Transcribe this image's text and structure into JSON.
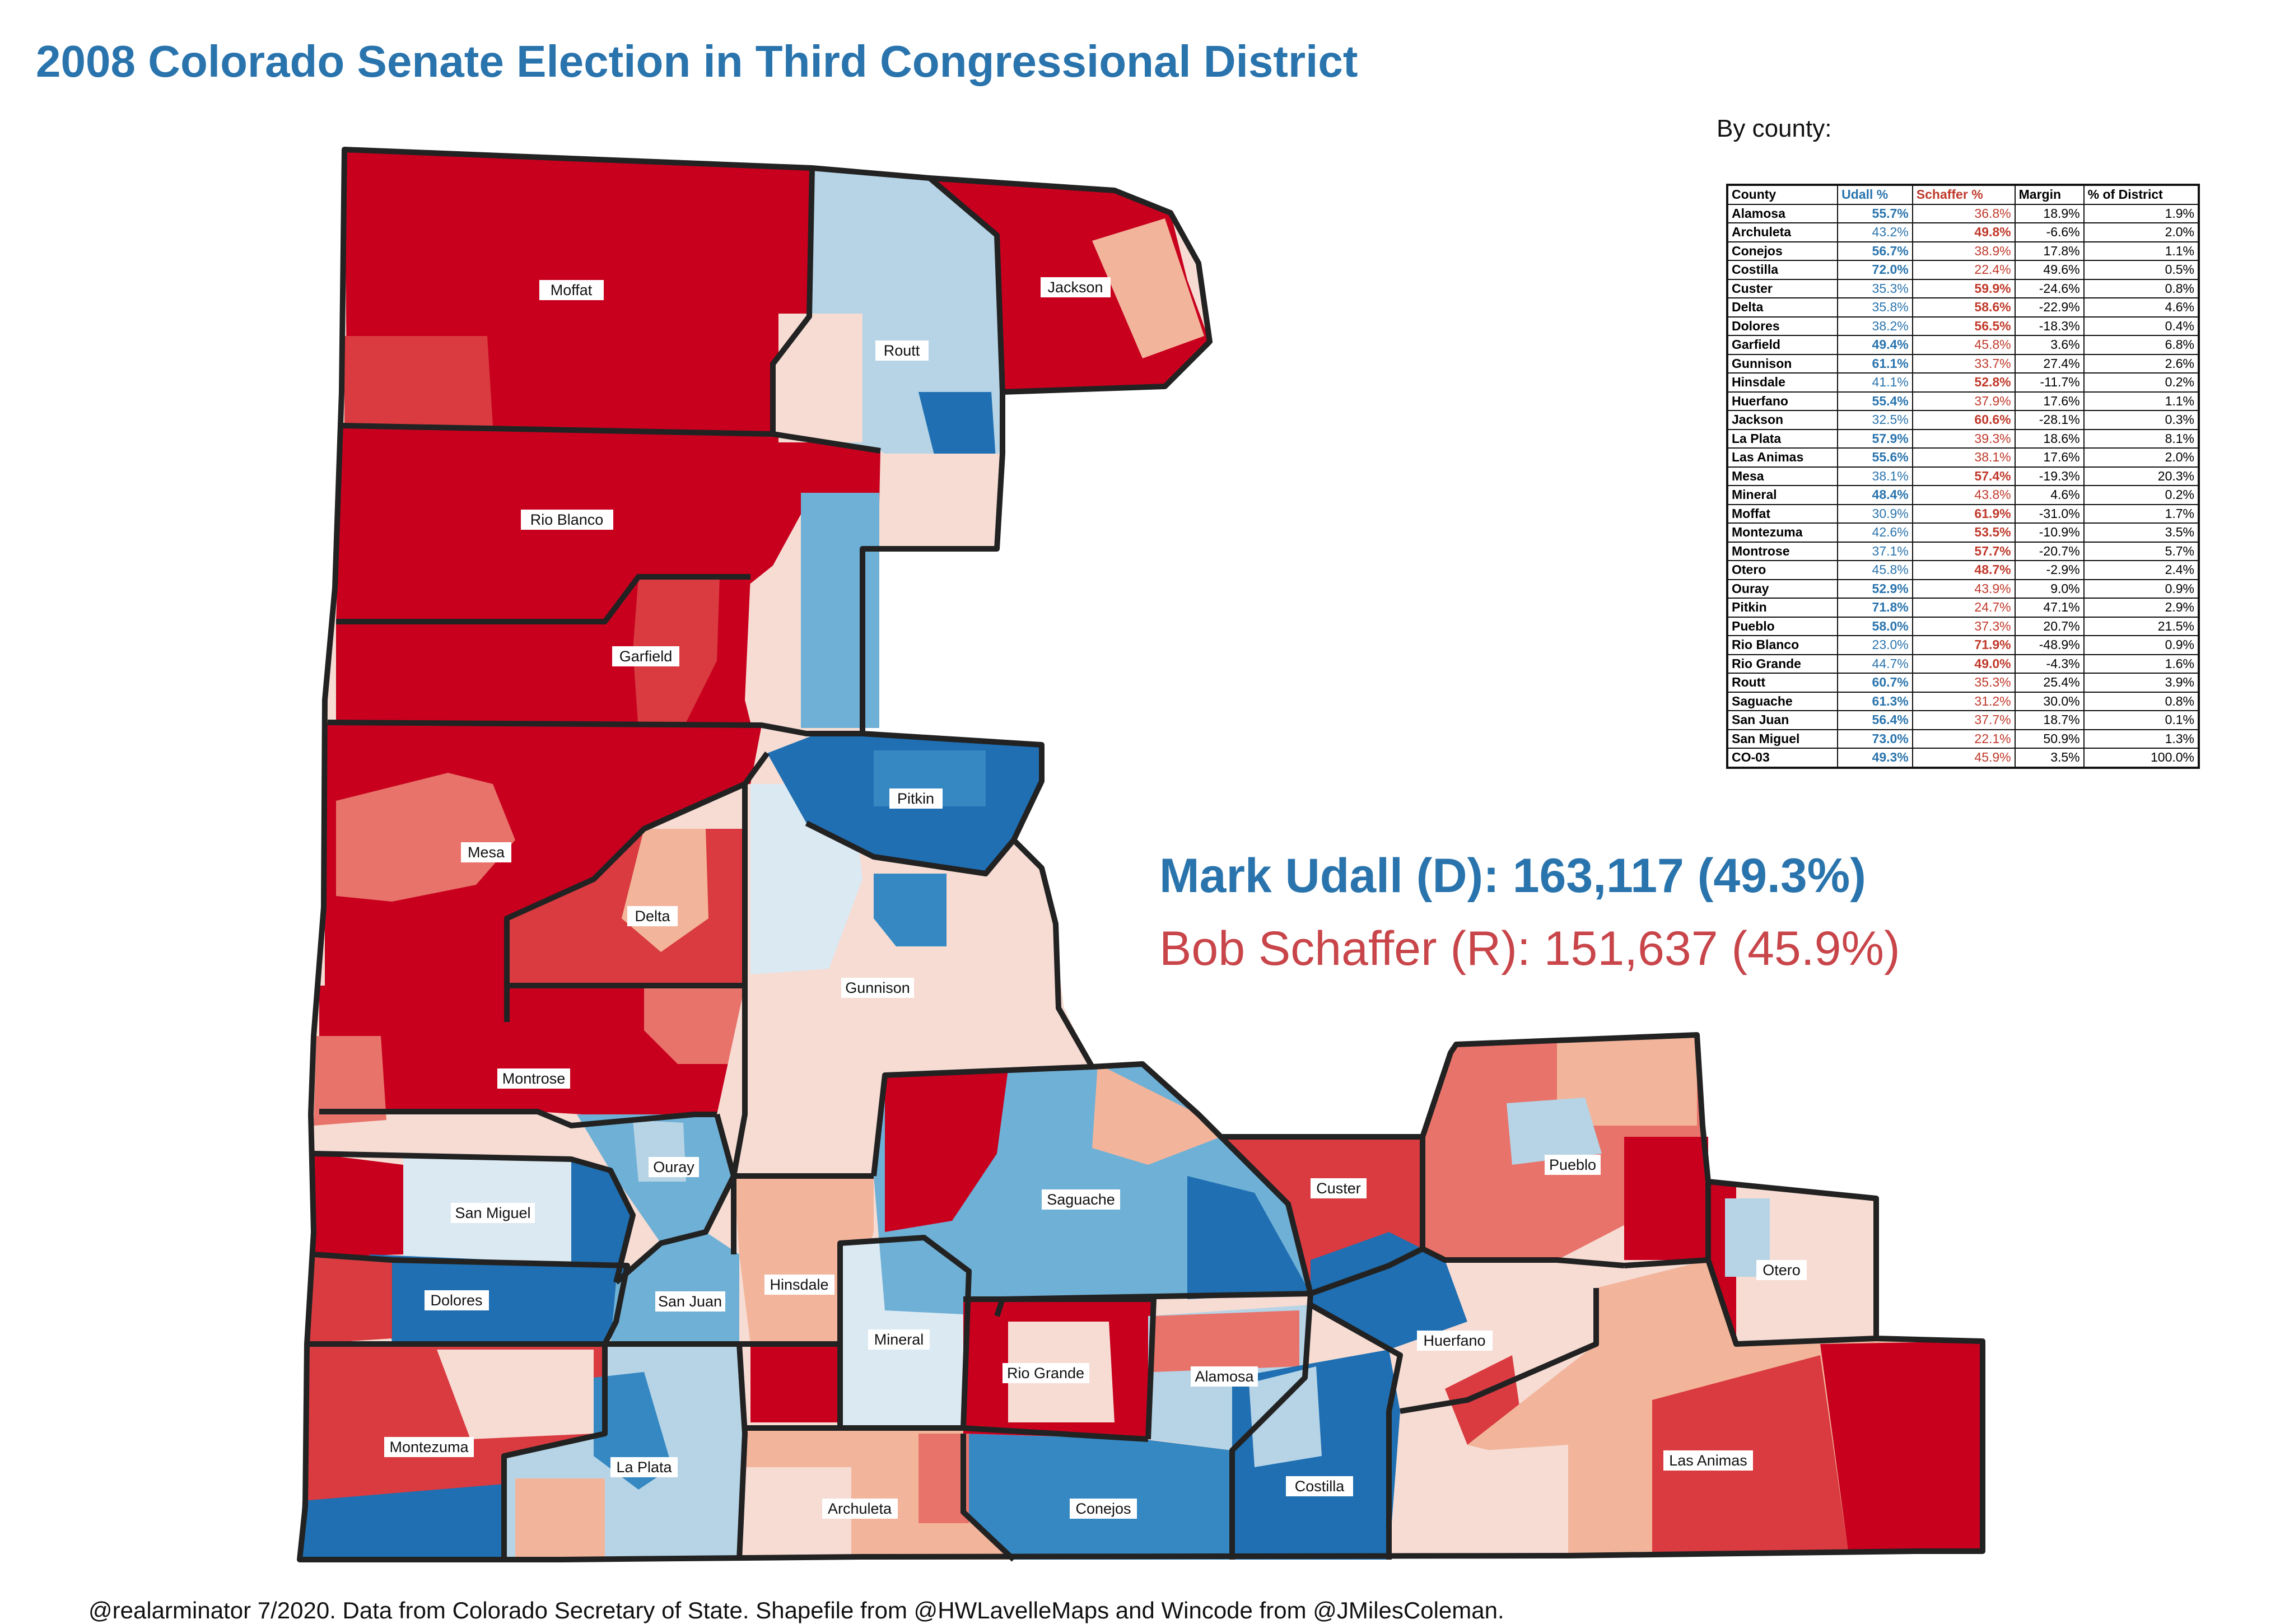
{
  "title": "2008 Colorado Senate Election in Third Congressional District",
  "by_county_label": "By county:",
  "table": {
    "headers": [
      "County",
      "Udall %",
      "Schaffer %",
      "Margin",
      "% of District"
    ],
    "rows": [
      {
        "county": "Alamosa",
        "udall": "55.7%",
        "schaffer": "36.8%",
        "margin": "18.9%",
        "district": "1.9%",
        "winner": "D"
      },
      {
        "county": "Archuleta",
        "udall": "43.2%",
        "schaffer": "49.8%",
        "margin": "-6.6%",
        "district": "2.0%",
        "winner": "R"
      },
      {
        "county": "Conejos",
        "udall": "56.7%",
        "schaffer": "38.9%",
        "margin": "17.8%",
        "district": "1.1%",
        "winner": "D"
      },
      {
        "county": "Costilla",
        "udall": "72.0%",
        "schaffer": "22.4%",
        "margin": "49.6%",
        "district": "0.5%",
        "winner": "D"
      },
      {
        "county": "Custer",
        "udall": "35.3%",
        "schaffer": "59.9%",
        "margin": "-24.6%",
        "district": "0.8%",
        "winner": "R"
      },
      {
        "county": "Delta",
        "udall": "35.8%",
        "schaffer": "58.6%",
        "margin": "-22.9%",
        "district": "4.6%",
        "winner": "R"
      },
      {
        "county": "Dolores",
        "udall": "38.2%",
        "schaffer": "56.5%",
        "margin": "-18.3%",
        "district": "0.4%",
        "winner": "R"
      },
      {
        "county": "Garfield",
        "udall": "49.4%",
        "schaffer": "45.8%",
        "margin": "3.6%",
        "district": "6.8%",
        "winner": "D"
      },
      {
        "county": "Gunnison",
        "udall": "61.1%",
        "schaffer": "33.7%",
        "margin": "27.4%",
        "district": "2.6%",
        "winner": "D"
      },
      {
        "county": "Hinsdale",
        "udall": "41.1%",
        "schaffer": "52.8%",
        "margin": "-11.7%",
        "district": "0.2%",
        "winner": "R"
      },
      {
        "county": "Huerfano",
        "udall": "55.4%",
        "schaffer": "37.9%",
        "margin": "17.6%",
        "district": "1.1%",
        "winner": "D"
      },
      {
        "county": "Jackson",
        "udall": "32.5%",
        "schaffer": "60.6%",
        "margin": "-28.1%",
        "district": "0.3%",
        "winner": "R"
      },
      {
        "county": "La Plata",
        "udall": "57.9%",
        "schaffer": "39.3%",
        "margin": "18.6%",
        "district": "8.1%",
        "winner": "D"
      },
      {
        "county": "Las Animas",
        "udall": "55.6%",
        "schaffer": "38.1%",
        "margin": "17.6%",
        "district": "2.0%",
        "winner": "D"
      },
      {
        "county": "Mesa",
        "udall": "38.1%",
        "schaffer": "57.4%",
        "margin": "-19.3%",
        "district": "20.3%",
        "winner": "R"
      },
      {
        "county": "Mineral",
        "udall": "48.4%",
        "schaffer": "43.8%",
        "margin": "4.6%",
        "district": "0.2%",
        "winner": "D"
      },
      {
        "county": "Moffat",
        "udall": "30.9%",
        "schaffer": "61.9%",
        "margin": "-31.0%",
        "district": "1.7%",
        "winner": "R"
      },
      {
        "county": "Montezuma",
        "udall": "42.6%",
        "schaffer": "53.5%",
        "margin": "-10.9%",
        "district": "3.5%",
        "winner": "R"
      },
      {
        "county": "Montrose",
        "udall": "37.1%",
        "schaffer": "57.7%",
        "margin": "-20.7%",
        "district": "5.7%",
        "winner": "R"
      },
      {
        "county": "Otero",
        "udall": "45.8%",
        "schaffer": "48.7%",
        "margin": "-2.9%",
        "district": "2.4%",
        "winner": "R"
      },
      {
        "county": "Ouray",
        "udall": "52.9%",
        "schaffer": "43.9%",
        "margin": "9.0%",
        "district": "0.9%",
        "winner": "D"
      },
      {
        "county": "Pitkin",
        "udall": "71.8%",
        "schaffer": "24.7%",
        "margin": "47.1%",
        "district": "2.9%",
        "winner": "D"
      },
      {
        "county": "Pueblo",
        "udall": "58.0%",
        "schaffer": "37.3%",
        "margin": "20.7%",
        "district": "21.5%",
        "winner": "D"
      },
      {
        "county": "Rio Blanco",
        "udall": "23.0%",
        "schaffer": "71.9%",
        "margin": "-48.9%",
        "district": "0.9%",
        "winner": "R"
      },
      {
        "county": "Rio Grande",
        "udall": "44.7%",
        "schaffer": "49.0%",
        "margin": "-4.3%",
        "district": "1.6%",
        "winner": "R"
      },
      {
        "county": "Routt",
        "udall": "60.7%",
        "schaffer": "35.3%",
        "margin": "25.4%",
        "district": "3.9%",
        "winner": "D"
      },
      {
        "county": "Saguache",
        "udall": "61.3%",
        "schaffer": "31.2%",
        "margin": "30.0%",
        "district": "0.8%",
        "winner": "D"
      },
      {
        "county": "San Juan",
        "udall": "56.4%",
        "schaffer": "37.7%",
        "margin": "18.7%",
        "district": "0.1%",
        "winner": "D"
      },
      {
        "county": "San Miguel",
        "udall": "73.0%",
        "schaffer": "22.1%",
        "margin": "50.9%",
        "district": "1.3%",
        "winner": "D"
      },
      {
        "county": "CO-03",
        "udall": "49.3%",
        "schaffer": "45.9%",
        "margin": "3.5%",
        "district": "100.0%",
        "winner": "D"
      }
    ]
  },
  "summary": {
    "udall": "Mark Udall (D): 163,117 (49.3%)",
    "schaffer": "Bob Schaffer (R): 151,637 (45.9%)"
  },
  "footer": "@realarminator 7/2020. Data from Colorado Secretary of State. Shapefile from @HWLavelleMaps and Wincode from @JMilesColeman.",
  "map_labels": {
    "moffat": "Moffat",
    "routt": "Routt",
    "jackson": "Jackson",
    "rio_blanco": "Rio Blanco",
    "garfield": "Garfield",
    "mesa": "Mesa",
    "pitkin": "Pitkin",
    "delta": "Delta",
    "gunnison": "Gunnison",
    "montrose": "Montrose",
    "ouray": "Ouray",
    "san_miguel": "San Miguel",
    "saguache": "Saguache",
    "custer": "Custer",
    "pueblo": "Pueblo",
    "otero": "Otero",
    "dolores": "Dolores",
    "san_juan": "San Juan",
    "hinsdale": "Hinsdale",
    "mineral": "Mineral",
    "rio_grande": "Rio Grande",
    "alamosa": "Alamosa",
    "huerfano": "Huerfano",
    "montezuma": "Montezuma",
    "la_plata": "La Plata",
    "archuleta": "Archuleta",
    "conejos": "Conejos",
    "costilla": "Costilla",
    "las_animas": "Las Animas"
  },
  "colors": {
    "udall": "#2a74ad",
    "schaffer": "#c0392b",
    "scale": {
      "r_strong": "#c8001e",
      "r_mid": "#d93b40",
      "r_light": "#e8736a",
      "r_faint": "#f2b59b",
      "r_tint": "#f6dcd3",
      "d_tint": "#dbe9f2",
      "d_faint": "#b6d4e6",
      "d_light": "#6fb0d6",
      "d_mid": "#3588c2",
      "d_strong": "#1f6fb2"
    }
  }
}
